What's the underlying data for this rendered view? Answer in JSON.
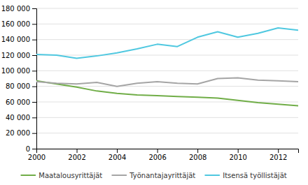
{
  "chart_data": {
    "type": "line",
    "x": [
      2000,
      2001,
      2002,
      2003,
      2004,
      2005,
      2006,
      2007,
      2008,
      2009,
      2010,
      2011,
      2012,
      2013
    ],
    "series": [
      {
        "name": "Maatalousyrittäjät",
        "color": "#70ad47",
        "values": [
          87000,
          83000,
          79000,
          74000,
          71000,
          69000,
          68000,
          67000,
          66000,
          65000,
          62000,
          59000,
          57000,
          55000
        ]
      },
      {
        "name": "Työnantajayrittäjät",
        "color": "#a5a5a5",
        "values": [
          86000,
          84000,
          83000,
          85000,
          80000,
          84000,
          86000,
          84000,
          83000,
          90000,
          91000,
          88000,
          87000,
          86000
        ]
      },
      {
        "name": "Itsensä työllistäjät",
        "color": "#4fc8e0",
        "values": [
          121000,
          120000,
          116000,
          119000,
          123000,
          128000,
          134000,
          131000,
          143000,
          150000,
          143000,
          148000,
          155000,
          152000
        ]
      }
    ],
    "xlim": [
      2000,
      2013
    ],
    "xticks": [
      2000,
      2002,
      2004,
      2006,
      2008,
      2010,
      2012
    ],
    "ylim": [
      0,
      180000
    ],
    "yticks": [
      0,
      {
        "value": 20000,
        "label": "20 000"
      },
      {
        "value": 40000,
        "label": "40 000"
      },
      {
        "value": 60000,
        "label": "60 000"
      },
      {
        "value": 80000,
        "label": "80 000"
      },
      {
        "value": 100000,
        "label": "100 000"
      },
      {
        "value": 120000,
        "label": "120 000"
      },
      {
        "value": 140000,
        "label": "140 000"
      },
      {
        "value": 160000,
        "label": "160 000"
      },
      {
        "value": 180000,
        "label": "180 000"
      }
    ],
    "grid": true,
    "legend": "bottom"
  }
}
